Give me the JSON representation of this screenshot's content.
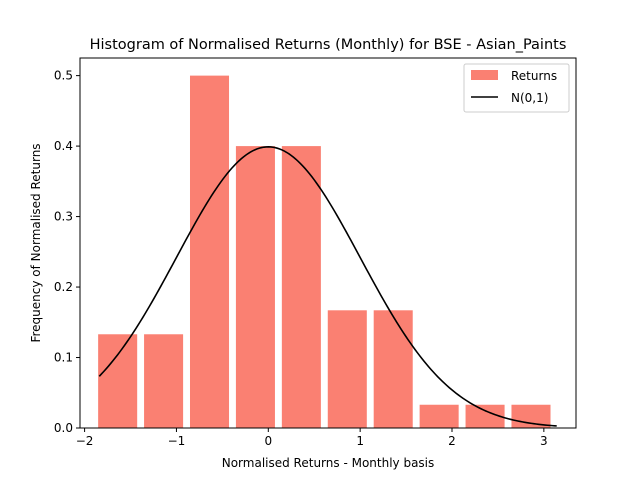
{
  "chart_data": {
    "type": "bar",
    "title": "Histogram of Normalised Returns (Monthly) for BSE - Asian_Paints",
    "xlabel": "Normalised Returns - Monthly basis",
    "ylabel": "Frequency of Normalised Returns",
    "xlim": [
      -2.05,
      3.35
    ],
    "ylim": [
      0,
      0.525
    ],
    "xticks": [
      -2,
      -1,
      0,
      1,
      2,
      3
    ],
    "xtick_labels": [
      "−2",
      "−1",
      "0",
      "1",
      "2",
      "3"
    ],
    "yticks": [
      0.0,
      0.1,
      0.2,
      0.3,
      0.4,
      0.5
    ],
    "ytick_labels": [
      "0.0",
      "0.1",
      "0.2",
      "0.3",
      "0.4",
      "0.5"
    ],
    "bars": {
      "name": "Returns",
      "color": "#fa8072",
      "bin_edges": [
        -1.89,
        -1.39,
        -0.89,
        -0.39,
        0.11,
        0.61,
        1.11,
        1.61,
        2.11,
        2.61,
        3.11
      ],
      "bar_width_fraction": 0.85,
      "values": [
        0.133,
        0.133,
        0.5,
        0.4,
        0.4,
        0.167,
        0.167,
        0.033,
        0.033,
        0.033
      ]
    },
    "curve": {
      "name": "N(0,1)",
      "color": "#000000",
      "x_range": [
        -1.84,
        3.14
      ]
    },
    "legend": {
      "position": "top-right",
      "entries": [
        "Returns",
        "N(0,1)"
      ]
    },
    "grid": false
  }
}
